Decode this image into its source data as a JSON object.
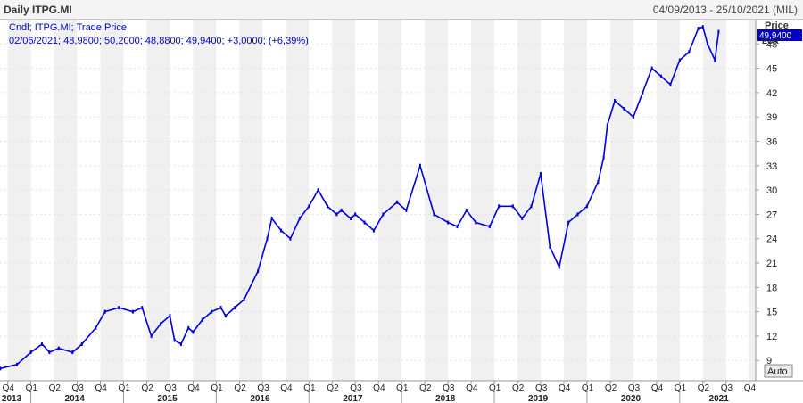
{
  "header": {
    "title": "Daily ITPG.MI",
    "range": "04/09/2013 - 25/10/2021 (MIL)"
  },
  "legend": {
    "line1": "Cndl; ITPG.MI; Trade Price",
    "line2": "02/06/2021; 48,9800; 50,2000; 48,8800; 49,9400; +3,0000; (+6,39%)"
  },
  "axis": {
    "price_label": "Price",
    "currency": "EUR",
    "last_value": "49,9400",
    "auto_label": "Auto"
  },
  "colors": {
    "series": "#0000dd",
    "band": "#f0f0f0",
    "last_box": "#0000cc"
  },
  "chart_data": {
    "type": "line",
    "title": "Daily ITPG.MI",
    "ylabel": "Price",
    "ylim": [
      6.5,
      51
    ],
    "yticks": [
      9,
      12,
      15,
      18,
      21,
      24,
      27,
      30,
      33,
      36,
      39,
      42,
      45,
      48
    ],
    "xlim": [
      2013.667,
      2021.82
    ],
    "quarter_labels": [
      "Q4",
      "Q1",
      "Q2",
      "Q3",
      "Q4",
      "Q1",
      "Q2",
      "Q3",
      "Q4",
      "Q1",
      "Q2",
      "Q3",
      "Q4",
      "Q1",
      "Q2",
      "Q3",
      "Q4",
      "Q1",
      "Q2",
      "Q3",
      "Q4",
      "Q1",
      "Q2",
      "Q3",
      "Q4",
      "Q1",
      "Q2",
      "Q3",
      "Q4",
      "Q1",
      "Q2",
      "Q3",
      "Q4"
    ],
    "year_labels": [
      "2013",
      "2014",
      "2015",
      "2016",
      "2017",
      "2018",
      "2019",
      "2020",
      "2021"
    ],
    "series": [
      {
        "name": "ITPG.MI",
        "x": [
          2013.67,
          2013.85,
          2014.0,
          2014.12,
          2014.2,
          2014.3,
          2014.45,
          2014.55,
          2014.7,
          2014.8,
          2014.95,
          2015.1,
          2015.2,
          2015.3,
          2015.4,
          2015.5,
          2015.55,
          2015.62,
          2015.7,
          2015.75,
          2015.85,
          2015.95,
          2016.05,
          2016.1,
          2016.2,
          2016.3,
          2016.45,
          2016.55,
          2016.6,
          2016.7,
          2016.8,
          2016.9,
          2017.0,
          2017.1,
          2017.2,
          2017.3,
          2017.35,
          2017.45,
          2017.5,
          2017.6,
          2017.7,
          2017.8,
          2017.95,
          2018.05,
          2018.2,
          2018.35,
          2018.5,
          2018.6,
          2018.7,
          2018.8,
          2018.95,
          2019.05,
          2019.2,
          2019.3,
          2019.4,
          2019.5,
          2019.6,
          2019.7,
          2019.8,
          2019.9,
          2020.0,
          2020.12,
          2020.18,
          2020.22,
          2020.3,
          2020.4,
          2020.5,
          2020.6,
          2020.7,
          2020.8,
          2020.9,
          2021.0,
          2021.1,
          2021.2,
          2021.25,
          2021.3,
          2021.38,
          2021.42
        ],
        "values": [
          8.0,
          8.5,
          10.0,
          11.0,
          10.0,
          10.5,
          10.0,
          11.0,
          13.0,
          15.0,
          15.5,
          15.0,
          15.5,
          12.0,
          13.5,
          14.5,
          11.5,
          11.0,
          13.0,
          12.5,
          14.0,
          15.0,
          15.5,
          14.5,
          15.5,
          16.5,
          20.0,
          24.0,
          26.5,
          25.0,
          24.0,
          26.5,
          28.0,
          30.0,
          28.0,
          27.0,
          27.5,
          26.5,
          27.0,
          26.0,
          25.0,
          27.0,
          28.5,
          27.5,
          33.0,
          27.0,
          26.0,
          25.5,
          27.5,
          26.0,
          25.5,
          28.0,
          28.0,
          26.5,
          28.0,
          32.0,
          23.0,
          20.5,
          26.0,
          27.0,
          28.0,
          31.0,
          34.0,
          38.0,
          41.0,
          40.0,
          39.0,
          42.0,
          45.0,
          44.0,
          43.0,
          46.0,
          47.0,
          49.9,
          50.1,
          48.0,
          46.0,
          49.5
        ]
      }
    ]
  }
}
